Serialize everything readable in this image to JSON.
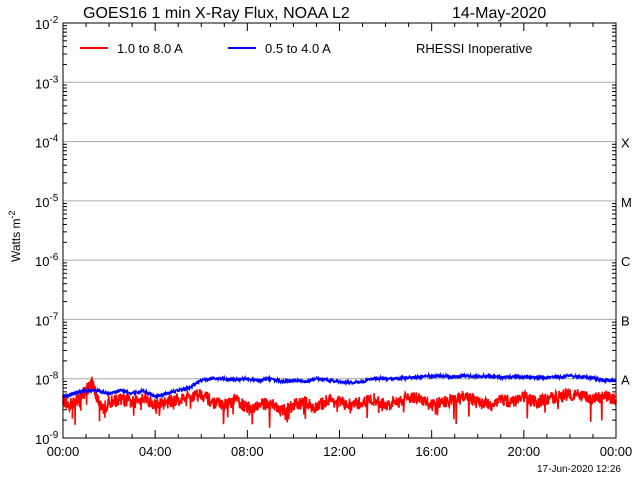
{
  "chart_data": {
    "type": "line",
    "title": "GOES16 1 min X-Ray Flux, NOAA L2",
    "date": "14-May-2020",
    "ylabel": "Watts m",
    "ylabel_sup": "-2",
    "y_scale": "log",
    "ylim_exp": [
      -9,
      -2
    ],
    "y_ticks": [
      {
        "base": "10",
        "exp": "-2",
        "value_exp": -2
      },
      {
        "base": "10",
        "exp": "-3",
        "value_exp": -3
      },
      {
        "base": "10",
        "exp": "-4",
        "value_exp": -4
      },
      {
        "base": "10",
        "exp": "-5",
        "value_exp": -5
      },
      {
        "base": "10",
        "exp": "-6",
        "value_exp": -6
      },
      {
        "base": "10",
        "exp": "-7",
        "value_exp": -7
      },
      {
        "base": "10",
        "exp": "-8",
        "value_exp": -8
      },
      {
        "base": "10",
        "exp": "-9",
        "value_exp": -9
      }
    ],
    "x_range_hours": [
      0,
      24
    ],
    "x_ticks": [
      {
        "label": "00:00",
        "hour": 0
      },
      {
        "label": "04:00",
        "hour": 4
      },
      {
        "label": "08:00",
        "hour": 8
      },
      {
        "label": "12:00",
        "hour": 12
      },
      {
        "label": "16:00",
        "hour": 16
      },
      {
        "label": "20:00",
        "hour": 20
      },
      {
        "label": "00:00",
        "hour": 24
      }
    ],
    "flare_classes": [
      {
        "label": "X",
        "value_exp": -4
      },
      {
        "label": "M",
        "value_exp": -5
      },
      {
        "label": "C",
        "value_exp": -6
      },
      {
        "label": "B",
        "value_exp": -7
      },
      {
        "label": "A",
        "value_exp": -8
      }
    ],
    "annotation": "RHESSI Inoperative",
    "timestamp": "17-Jun-2020 12:26",
    "series": [
      {
        "name": "1.0 to 8.0 A",
        "color": "#ff0000",
        "x_hours": [
          0,
          0.25,
          0.5,
          0.75,
          1.0,
          1.25,
          1.5,
          1.75,
          2.0,
          2.5,
          3.0,
          3.5,
          4.0,
          4.5,
          5.0,
          5.5,
          6.0,
          6.5,
          7.0,
          7.5,
          8.0,
          8.5,
          9.0,
          9.5,
          10.0,
          10.5,
          11.0,
          11.5,
          12.0,
          12.5,
          13.0,
          13.5,
          14.0,
          14.5,
          15.0,
          15.5,
          16.0,
          16.5,
          17.0,
          17.5,
          18.0,
          18.5,
          19.0,
          19.5,
          20.0,
          20.5,
          21.0,
          21.5,
          22.0,
          22.5,
          23.0,
          23.5,
          24.0
        ],
        "log_flux": [
          -8.35,
          -8.45,
          -8.4,
          -8.3,
          -8.2,
          -8.05,
          -8.35,
          -8.5,
          -8.4,
          -8.35,
          -8.4,
          -8.3,
          -8.45,
          -8.4,
          -8.35,
          -8.3,
          -8.25,
          -8.4,
          -8.45,
          -8.35,
          -8.5,
          -8.45,
          -8.4,
          -8.55,
          -8.45,
          -8.4,
          -8.5,
          -8.35,
          -8.4,
          -8.45,
          -8.4,
          -8.35,
          -8.45,
          -8.4,
          -8.3,
          -8.35,
          -8.45,
          -8.4,
          -8.35,
          -8.3,
          -8.4,
          -8.45,
          -8.35,
          -8.4,
          -8.3,
          -8.4,
          -8.35,
          -8.3,
          -8.25,
          -8.3,
          -8.35,
          -8.3,
          -8.35
        ]
      },
      {
        "name": "0.5 to 4.0 A",
        "color": "#0000ff",
        "x_hours": [
          0,
          0.25,
          0.5,
          0.75,
          1.0,
          1.5,
          2.0,
          2.5,
          3.0,
          3.5,
          4.0,
          4.5,
          5.0,
          5.5,
          6.0,
          6.5,
          7.0,
          7.5,
          8.0,
          8.5,
          9.0,
          9.5,
          10.0,
          10.5,
          11.0,
          11.5,
          12.0,
          12.5,
          13.0,
          13.5,
          14.0,
          14.5,
          15.0,
          15.5,
          16.0,
          16.5,
          17.0,
          17.5,
          18.0,
          18.5,
          19.0,
          19.5,
          20.0,
          20.5,
          21.0,
          21.5,
          22.0,
          22.5,
          23.0,
          23.5,
          24.0
        ],
        "log_flux": [
          -8.3,
          -8.28,
          -8.25,
          -8.22,
          -8.2,
          -8.2,
          -8.25,
          -8.2,
          -8.25,
          -8.2,
          -8.3,
          -8.25,
          -8.2,
          -8.15,
          -8.03,
          -8.0,
          -8.0,
          -8.02,
          -8.0,
          -8.03,
          -8.0,
          -8.05,
          -8.03,
          -8.05,
          -8.0,
          -8.02,
          -8.05,
          -8.07,
          -8.05,
          -8.0,
          -8.0,
          -8.0,
          -7.98,
          -7.97,
          -7.95,
          -7.96,
          -7.97,
          -7.95,
          -7.97,
          -7.95,
          -7.98,
          -7.97,
          -7.97,
          -7.98,
          -7.98,
          -7.97,
          -7.95,
          -7.97,
          -7.98,
          -8.03,
          -8.02
        ]
      }
    ]
  }
}
